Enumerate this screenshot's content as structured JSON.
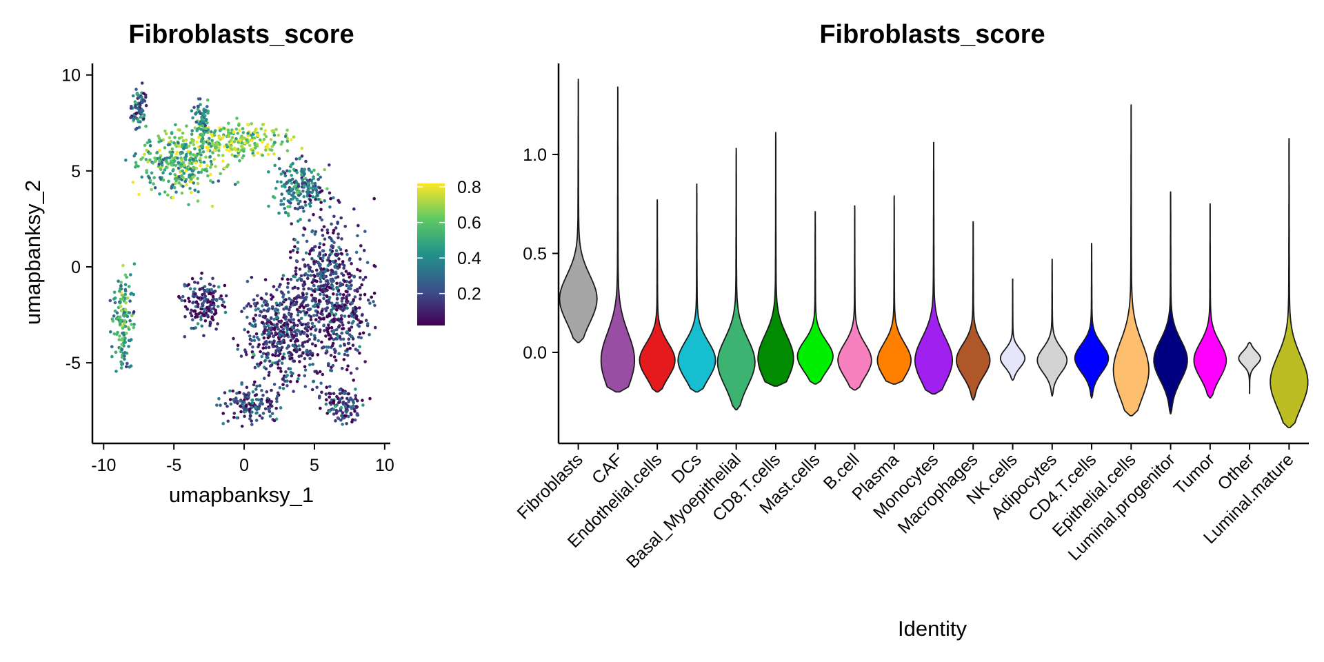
{
  "chart_data": [
    {
      "type": "scatter",
      "title": "Fibroblasts_score",
      "xlabel": "umapbanksy_1",
      "ylabel": "umapbanksy_2",
      "xlim": [
        -10.8,
        10.4
      ],
      "ylim": [
        -9.2,
        10.6
      ],
      "x_ticks": [
        -10,
        -5,
        0,
        5,
        10
      ],
      "y_ticks": [
        -5,
        0,
        5,
        10
      ],
      "x_tick_labels": [
        "-10",
        "-5",
        "0",
        "5",
        "10"
      ],
      "y_tick_labels": [
        "-5",
        "0",
        "5",
        "10"
      ],
      "color_scale": {
        "name": "viridis",
        "range": [
          0.02,
          0.82
        ],
        "ticks": [
          0.2,
          0.4,
          0.6,
          0.8
        ],
        "tick_labels": [
          "0.2",
          "0.4",
          "0.6",
          "0.8"
        ],
        "colors": [
          "#440154",
          "#3b528b",
          "#21918c",
          "#5ec962",
          "#fde725"
        ]
      },
      "regions": [
        {
          "name": "upper-left high-score cluster",
          "center": [
            -4.5,
            5.3
          ],
          "spread": [
            2.6,
            1.5
          ],
          "score": 0.55
        },
        {
          "name": "bright arc",
          "center": [
            -0.5,
            6.6
          ],
          "spread": [
            3.2,
            0.8
          ],
          "score": 0.68
        },
        {
          "name": "arc right",
          "center": [
            4.0,
            4.2
          ],
          "spread": [
            1.8,
            1.2
          ],
          "score": 0.35
        },
        {
          "name": "upper spike left",
          "center": [
            -7.5,
            8.2
          ],
          "spread": [
            0.5,
            1.0
          ],
          "score": 0.3
        },
        {
          "name": "upper spike",
          "center": [
            -3.0,
            7.6
          ],
          "spread": [
            0.5,
            0.9
          ],
          "score": 0.45
        },
        {
          "name": "left arm",
          "center": [
            -8.6,
            -2.8
          ],
          "spread": [
            0.7,
            2.2
          ],
          "score": 0.5
        },
        {
          "name": "right body",
          "center": [
            6.0,
            -1.5
          ],
          "spread": [
            2.4,
            3.8
          ],
          "score": 0.15
        },
        {
          "name": "center body",
          "center": [
            2.5,
            -3.5
          ],
          "spread": [
            2.2,
            2.4
          ],
          "score": 0.15
        },
        {
          "name": "lower-left lobe",
          "center": [
            -2.8,
            -1.8
          ],
          "spread": [
            1.4,
            1.2
          ],
          "score": 0.12
        },
        {
          "name": "bottom lobe",
          "center": [
            0.5,
            -7.2
          ],
          "spread": [
            1.8,
            0.8
          ],
          "score": 0.18
        },
        {
          "name": "bottom right",
          "center": [
            7.0,
            -7.2
          ],
          "spread": [
            1.2,
            0.9
          ],
          "score": 0.15
        }
      ]
    },
    {
      "type": "violin",
      "title": "Fibroblasts_score",
      "xlabel": "Identity",
      "ylabel": "",
      "ylim": [
        -0.46,
        1.46
      ],
      "y_ticks": [
        0.0,
        0.5,
        1.0
      ],
      "y_tick_labels": [
        "0.0",
        "0.5",
        "1.0"
      ],
      "categories": [
        "Fibroblasts",
        "CAF",
        "Endothelial.cells",
        "DCs",
        "Basal_Myoepithelial",
        "CD8.T.cells",
        "Mast.cells",
        "B.cell",
        "Plasma",
        "Monocytes",
        "Macrophages",
        "NK.cells",
        "Adipocytes",
        "CD4.T.cells",
        "Epithelial.cells",
        "Luminal.progenitor",
        "Tumor",
        "Other",
        "Luminal.mature"
      ],
      "colors": [
        "#a6a6a6",
        "#984ea3",
        "#e41a1c",
        "#17becf",
        "#3cb371",
        "#008b00",
        "#00ee00",
        "#f781bf",
        "#ff7f00",
        "#a020f0",
        "#b0572a",
        "#e6e6fa",
        "#d3d3d3",
        "#0000ff",
        "#fdbf6f",
        "#000080",
        "#ff00ff",
        "#dcdcdc",
        "#bcbd22"
      ],
      "min": [
        0.05,
        -0.2,
        -0.2,
        -0.2,
        -0.29,
        -0.17,
        -0.16,
        -0.19,
        -0.16,
        -0.21,
        -0.24,
        -0.14,
        -0.22,
        -0.23,
        -0.32,
        -0.31,
        -0.23,
        -0.21,
        -0.38
      ],
      "max": [
        1.38,
        1.34,
        0.77,
        0.85,
        1.03,
        1.11,
        0.71,
        0.74,
        0.79,
        1.06,
        0.66,
        0.37,
        0.47,
        0.55,
        1.25,
        0.81,
        0.75,
        0.05,
        1.08
      ],
      "mode": [
        0.27,
        -0.04,
        -0.04,
        -0.04,
        -0.05,
        -0.03,
        -0.02,
        -0.04,
        -0.04,
        -0.04,
        -0.04,
        -0.03,
        -0.04,
        -0.03,
        -0.09,
        -0.04,
        -0.04,
        -0.03,
        -0.15
      ],
      "width": [
        0.95,
        0.85,
        0.9,
        0.95,
        0.95,
        0.9,
        0.9,
        0.85,
        0.85,
        0.95,
        0.85,
        0.62,
        0.75,
        0.85,
        0.9,
        0.85,
        0.82,
        0.55,
        0.95
      ]
    }
  ]
}
